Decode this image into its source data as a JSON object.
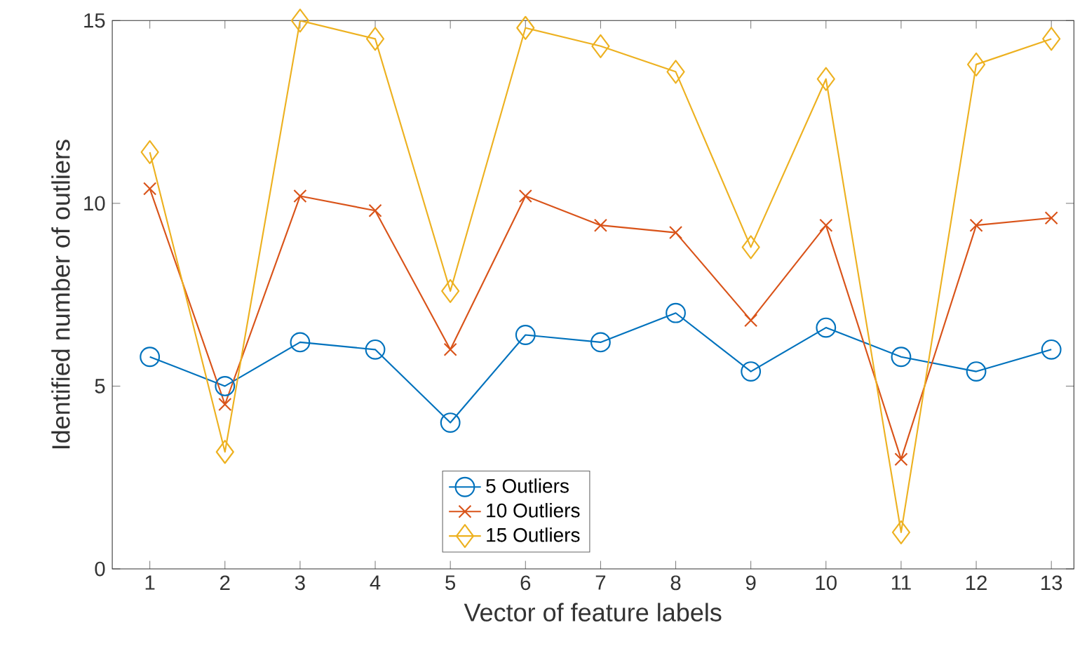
{
  "chart_data": {
    "type": "line",
    "xlabel": "Vector of feature labels",
    "ylabel": "Identified number of outliers",
    "x": [
      1,
      2,
      3,
      4,
      5,
      6,
      7,
      8,
      9,
      10,
      11,
      12,
      13
    ],
    "xlim": [
      0.5,
      13.3
    ],
    "xticks": [
      1,
      2,
      3,
      4,
      5,
      6,
      7,
      8,
      9,
      10,
      11,
      12,
      13
    ],
    "ylim": [
      0,
      15
    ],
    "yticks": [
      0,
      5,
      10,
      15
    ],
    "legend": "bottom",
    "line_style": "solid",
    "grid": false,
    "series": [
      {
        "name": "5 Outliers",
        "color": "#0072bd",
        "marker": "circle",
        "values": [
          5.8,
          5.0,
          6.2,
          6.0,
          4.0,
          6.4,
          6.2,
          7.0,
          5.4,
          6.6,
          5.8,
          5.4,
          6.0
        ]
      },
      {
        "name": "10 Outliers",
        "color": "#d95319",
        "marker": "cross",
        "values": [
          10.4,
          4.5,
          10.2,
          9.8,
          6.0,
          10.2,
          9.4,
          9.2,
          6.8,
          9.4,
          3.0,
          9.4,
          9.6
        ]
      },
      {
        "name": "15 Outliers",
        "color": "#edb120",
        "marker": "diamond",
        "values": [
          11.4,
          3.2,
          15.0,
          14.5,
          7.6,
          14.8,
          14.3,
          13.6,
          8.8,
          13.4,
          1.0,
          13.8,
          14.5
        ]
      }
    ]
  }
}
